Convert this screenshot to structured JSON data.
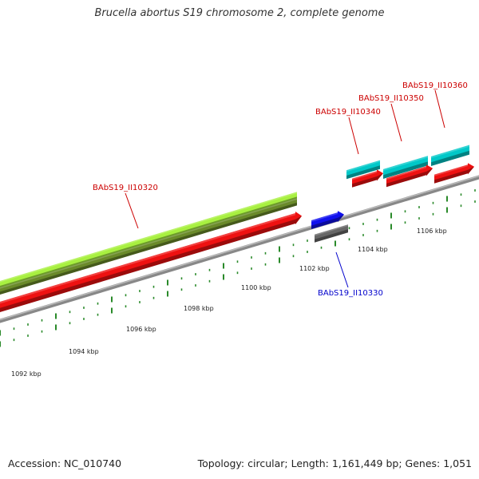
{
  "title": "Brucella abortus S19 chromosome 2, complete genome",
  "footer": {
    "accession": "Accession: NC_010740",
    "topology": "Topology: circular; Length: 1,161,449 bp; Genes: 1,051"
  },
  "colors": {
    "forward_cds": "#ee1111",
    "reverse_cds": "#1111ee",
    "gene_band": "#00c8c8",
    "gene_strip": "#99ee44",
    "gray_feature": "#666666",
    "backbone": "#888888",
    "tick": "#2a8a2a",
    "label_forward": "#cc0000",
    "label_reverse": "#0000cc"
  },
  "scale": {
    "tick_labels": [
      "1092 kbp",
      "1094 kbp",
      "1096 kbp",
      "1098 kbp",
      "1100 kbp",
      "1102 kbp",
      "1104 kbp",
      "1106 kbp"
    ]
  },
  "genes": [
    {
      "id": "g10320",
      "label": "BAbS19_II10320",
      "strand": "forward"
    },
    {
      "id": "g10330",
      "label": "BAbS19_II10330",
      "strand": "reverse"
    },
    {
      "id": "g10340",
      "label": "BAbS19_II10340",
      "strand": "forward"
    },
    {
      "id": "g10350",
      "label": "BAbS19_II10350",
      "strand": "forward"
    },
    {
      "id": "g10360",
      "label": "BAbS19_II10360",
      "strand": "forward"
    }
  ]
}
